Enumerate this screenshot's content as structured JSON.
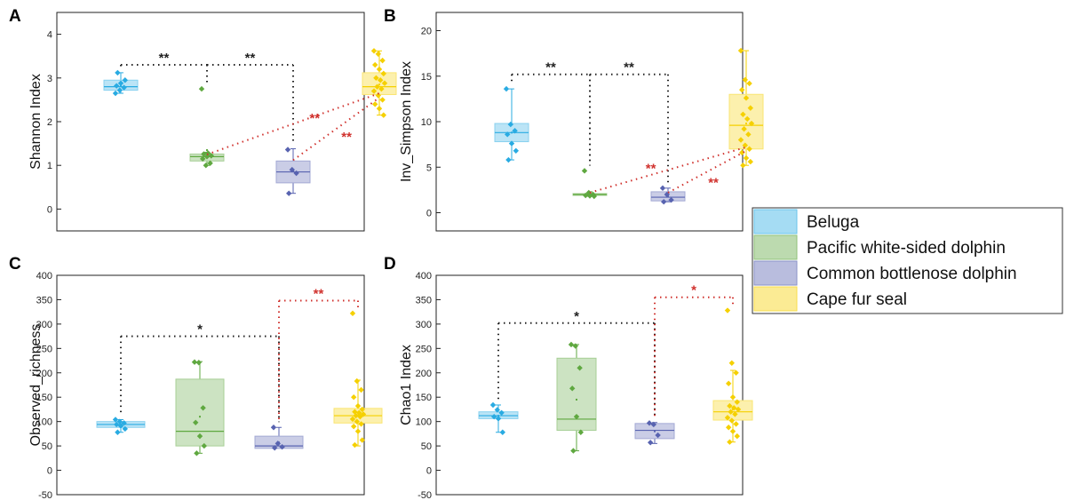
{
  "chart_data": [
    {
      "type": "box",
      "panel_label": "A",
      "ylabel": "Shannon Index",
      "ylim": [
        -0.5,
        4.5
      ],
      "yticks": [
        "0",
        "1",
        "2",
        "3",
        "4"
      ],
      "groups": [
        {
          "name": "Beluga",
          "color": "#29ABE2",
          "box": [
            2.72,
            2.8,
            2.95
          ],
          "whisker": [
            2.65,
            3.12
          ],
          "mean": 2.83,
          "points": [
            2.65,
            2.72,
            2.78,
            2.82,
            2.88,
            2.95,
            3.12
          ]
        },
        {
          "name": "Pacific white-sided dolphin",
          "color": "#5FA840",
          "box": [
            1.1,
            1.2,
            1.26
          ],
          "whisker": [
            1.0,
            1.3
          ],
          "mean": 1.35,
          "points": [
            2.75,
            1.0,
            1.05,
            1.15,
            1.2,
            1.22,
            1.26,
            1.28
          ]
        },
        {
          "name": "Common bottlenose dolphin",
          "color": "#5863B0",
          "box": [
            0.6,
            0.85,
            1.1
          ],
          "whisker": [
            0.36,
            1.38
          ],
          "mean": 0.86,
          "points": [
            1.36,
            0.9,
            0.82,
            0.36
          ]
        },
        {
          "name": "Cape fur seal",
          "color": "#F5D000",
          "box": [
            2.62,
            2.8,
            3.12
          ],
          "whisker": [
            2.15,
            3.62
          ],
          "mean": 2.85,
          "points": [
            3.62,
            3.55,
            3.4,
            3.3,
            3.2,
            3.1,
            3.0,
            2.95,
            2.88,
            2.8,
            2.75,
            2.7,
            2.6,
            2.5,
            2.4,
            2.3,
            2.15
          ]
        }
      ],
      "brackets": [
        {
          "from": 0,
          "to": 1,
          "y": 3.3,
          "label": "**",
          "color": "#222222"
        },
        {
          "from": 1,
          "to": 2,
          "y": 3.3,
          "label": "**",
          "color": "#222222"
        }
      ],
      "diagonals": [
        {
          "from": [
            1,
            1.25
          ],
          "to": [
            3,
            2.65
          ],
          "label": "**",
          "label_at": [
            2.25,
            2.08
          ],
          "color": "#D0312D"
        },
        {
          "from": [
            2,
            1.12
          ],
          "to": [
            3,
            2.55
          ],
          "label": "**",
          "label_at": [
            2.62,
            1.65
          ],
          "color": "#D0312D"
        }
      ]
    },
    {
      "type": "box",
      "panel_label": "B",
      "ylabel": "Inv_Simpson Index",
      "ylim": [
        -2,
        22
      ],
      "yticks": [
        "0",
        "5",
        "10",
        "15",
        "20"
      ],
      "groups": [
        {
          "name": "Beluga",
          "color": "#29ABE2",
          "box": [
            7.8,
            8.8,
            9.8
          ],
          "whisker": [
            5.8,
            13.6
          ],
          "mean": 8.8,
          "points": [
            13.6,
            9.7,
            9.0,
            8.6,
            7.6,
            6.8,
            5.8
          ]
        },
        {
          "name": "Pacific white-sided dolphin",
          "color": "#5FA840",
          "box": [
            1.9,
            2.0,
            2.1
          ],
          "whisker": [
            1.8,
            2.3
          ],
          "mean": 2.0,
          "points": [
            4.6,
            2.2,
            2.0,
            1.9,
            1.85,
            1.8
          ]
        },
        {
          "name": "Common bottlenose dolphin",
          "color": "#5863B0",
          "box": [
            1.3,
            1.7,
            2.3
          ],
          "whisker": [
            1.2,
            2.7
          ],
          "mean": 1.8,
          "points": [
            2.7,
            2.0,
            1.4,
            1.2
          ]
        },
        {
          "name": "Cape fur seal",
          "color": "#F5D000",
          "box": [
            7.0,
            9.6,
            13.0
          ],
          "whisker": [
            5.2,
            17.8
          ],
          "mean": 9.8,
          "points": [
            17.8,
            14.6,
            14.2,
            13.5,
            12.6,
            11.5,
            10.8,
            10.3,
            9.8,
            9.2,
            8.6,
            8.0,
            7.4,
            7.0,
            6.6,
            6.0,
            5.6,
            5.2
          ]
        }
      ],
      "brackets": [
        {
          "from": 0,
          "to": 1,
          "y": 15.2,
          "label": "**",
          "color": "#222222"
        },
        {
          "from": 1,
          "to": 2,
          "y": 15.2,
          "label": "**",
          "color": "#222222"
        }
      ],
      "diagonals": [
        {
          "from": [
            1,
            2.2
          ],
          "to": [
            3,
            7.2
          ],
          "label": "**",
          "label_at": [
            1.78,
            4.9
          ],
          "color": "#D0312D"
        },
        {
          "from": [
            2,
            2.2
          ],
          "to": [
            3,
            6.8
          ],
          "label": "**",
          "label_at": [
            2.58,
            3.3
          ],
          "color": "#D0312D"
        }
      ]
    },
    {
      "type": "box",
      "panel_label": "C",
      "ylabel": "Observed_richness",
      "ylim": [
        -50,
        400
      ],
      "yticks": [
        "-50",
        "0",
        "50",
        "100",
        "150",
        "200",
        "250",
        "300",
        "350",
        "400"
      ],
      "groups": [
        {
          "name": "Beluga",
          "color": "#29ABE2",
          "box": [
            88,
            94,
            100
          ],
          "whisker": [
            78,
            104
          ],
          "mean": 94,
          "points": [
            104,
            100,
            97,
            94,
            91,
            85,
            78
          ]
        },
        {
          "name": "Pacific white-sided dolphin",
          "color": "#5FA840",
          "box": [
            50,
            80,
            187
          ],
          "whisker": [
            35,
            223
          ],
          "mean": 110,
          "points": [
            222,
            221,
            128,
            98,
            70,
            50,
            35
          ]
        },
        {
          "name": "Common bottlenose dolphin",
          "color": "#5863B0",
          "box": [
            45,
            50,
            70
          ],
          "whisker": [
            45,
            88
          ],
          "mean": 57,
          "points": [
            88,
            55,
            48,
            46
          ]
        },
        {
          "name": "Cape fur seal",
          "color": "#F5D000",
          "box": [
            97,
            112,
            127
          ],
          "whisker": [
            50,
            185
          ],
          "mean": 113,
          "points": [
            322,
            183,
            165,
            150,
            132,
            125,
            120,
            118,
            115,
            112,
            110,
            105,
            100,
            95,
            90,
            80,
            62,
            52
          ]
        }
      ],
      "brackets": [
        {
          "from": 0,
          "to": 2,
          "y": 275,
          "label": "*",
          "color": "#222222"
        },
        {
          "from": 2,
          "to": 3,
          "y": 348,
          "label": "**",
          "color": "#D0312D"
        }
      ],
      "diagonals": []
    },
    {
      "type": "box",
      "panel_label": "D",
      "ylabel": "Chao1 Index",
      "ylim": [
        -50,
        400
      ],
      "yticks": [
        "-50",
        "0",
        "50",
        "100",
        "150",
        "200",
        "250",
        "300",
        "350",
        "400"
      ],
      "groups": [
        {
          "name": "Beluga",
          "color": "#29ABE2",
          "box": [
            106,
            112,
            120
          ],
          "whisker": [
            78,
            134
          ],
          "mean": 112,
          "points": [
            134,
            124,
            118,
            110,
            106,
            78
          ]
        },
        {
          "name": "Pacific white-sided dolphin",
          "color": "#5FA840",
          "box": [
            82,
            105,
            230
          ],
          "whisker": [
            40,
            258
          ],
          "mean": 145,
          "points": [
            258,
            255,
            210,
            168,
            110,
            78,
            40
          ]
        },
        {
          "name": "Common bottlenose dolphin",
          "color": "#5863B0",
          "box": [
            65,
            82,
            96
          ],
          "whisker": [
            55,
            98
          ],
          "mean": 80,
          "points": [
            97,
            94,
            72,
            57
          ]
        },
        {
          "name": "Cape fur seal",
          "color": "#F5D000",
          "box": [
            103,
            120,
            143
          ],
          "whisker": [
            58,
            205
          ],
          "mean": 125,
          "points": [
            328,
            220,
            200,
            178,
            150,
            140,
            132,
            128,
            125,
            120,
            115,
            108,
            102,
            95,
            88,
            80,
            70,
            58
          ]
        }
      ],
      "brackets": [
        {
          "from": 0,
          "to": 2,
          "y": 302,
          "label": "*",
          "color": "#222222"
        },
        {
          "from": 2,
          "to": 3,
          "y": 355,
          "label": "*",
          "color": "#D0312D"
        }
      ],
      "diagonals": []
    }
  ],
  "legend": {
    "position": "right",
    "items": [
      {
        "label": "Beluga",
        "color": "#29ABE2"
      },
      {
        "label": "Pacific white-sided dolphin",
        "color": "#5FA840"
      },
      {
        "label": "Common bottlenose dolphin",
        "color": "#5863B0"
      },
      {
        "label": "Cape fur seal",
        "color": "#F5D000"
      }
    ]
  }
}
